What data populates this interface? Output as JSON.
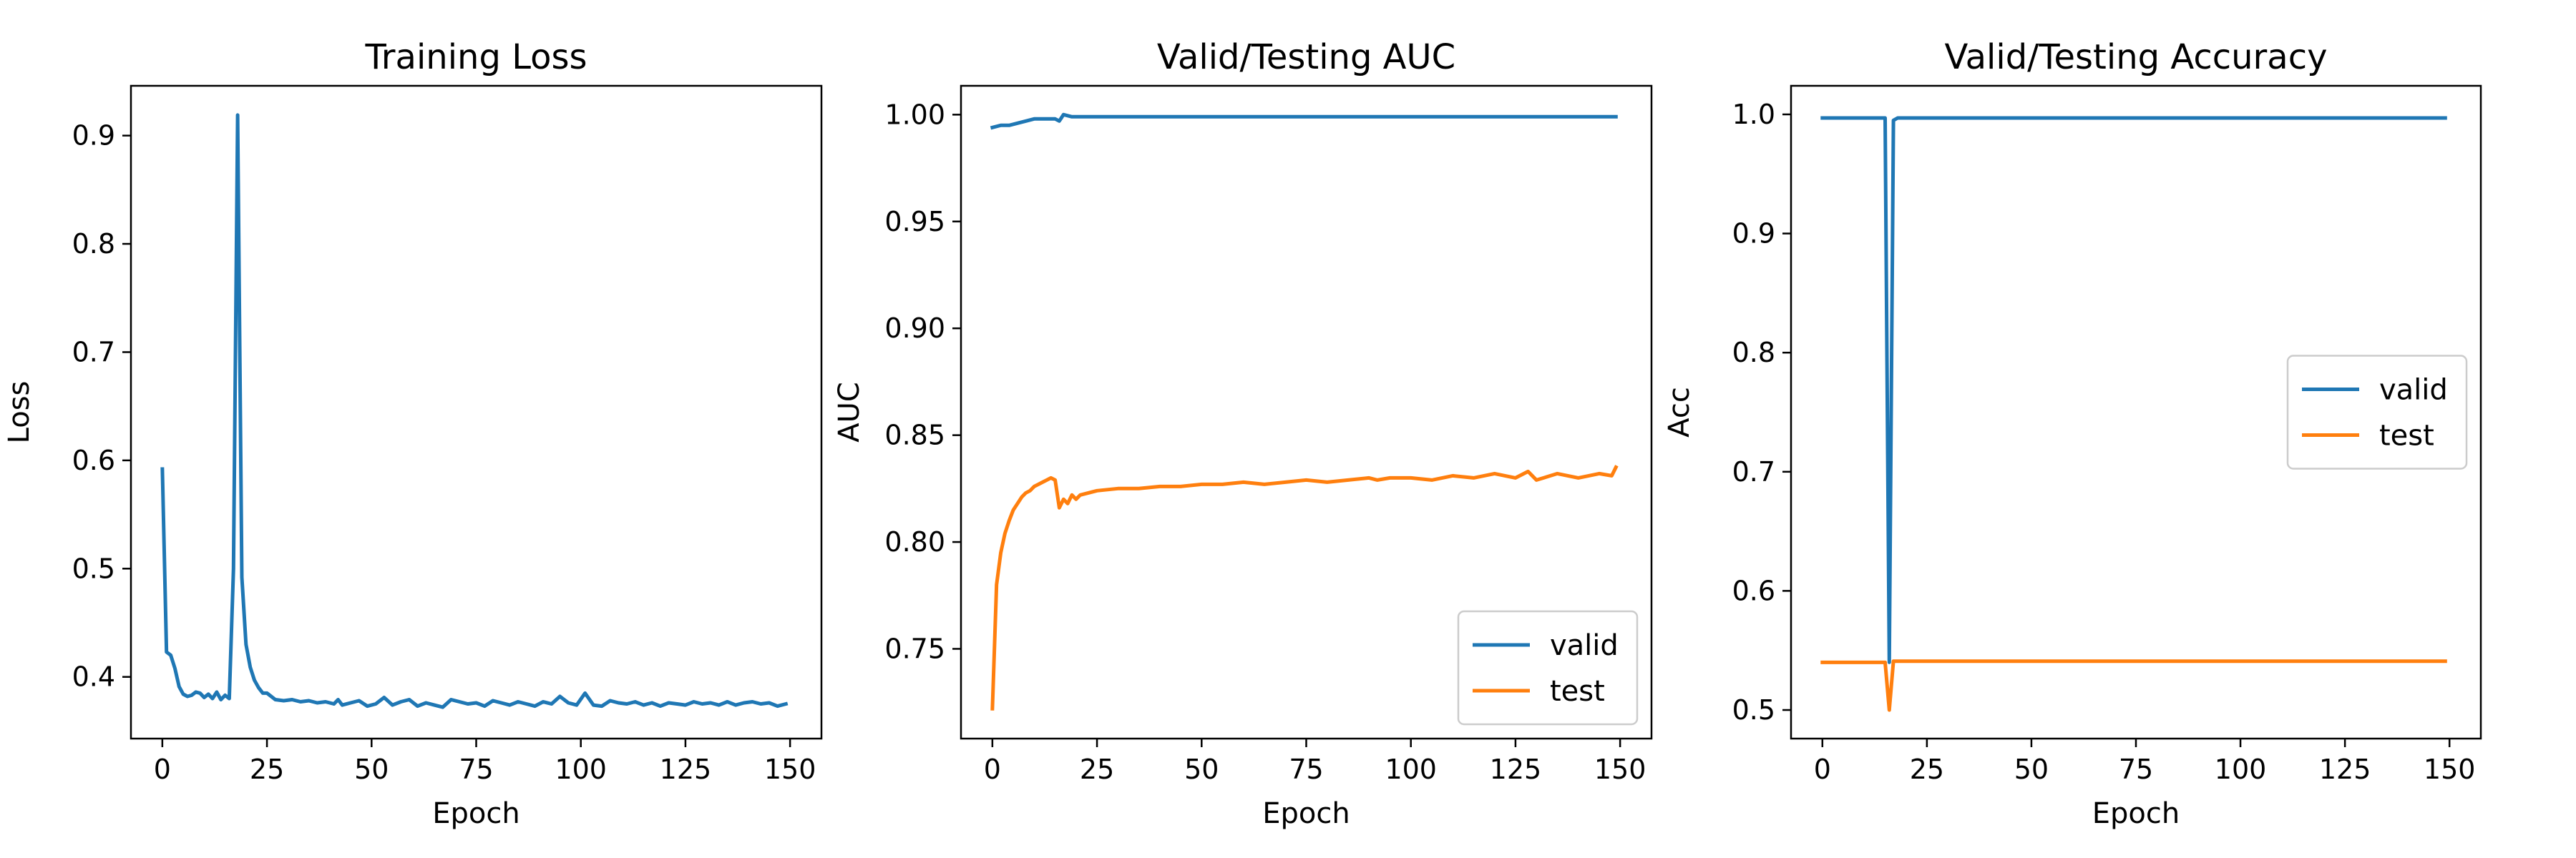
{
  "chart_data": [
    {
      "type": "line",
      "title": "Training Loss",
      "xlabel": "Epoch",
      "ylabel": "Loss",
      "xlim": [
        -7.5,
        157.5
      ],
      "ylim": [
        0.343,
        0.946
      ],
      "xticks": [
        0,
        25,
        50,
        75,
        100,
        125,
        150
      ],
      "yticks": [
        0.4,
        0.5,
        0.6,
        0.7,
        0.8,
        0.9
      ],
      "ytick_labels": [
        "0.4",
        "0.5",
        "0.6",
        "0.7",
        "0.8",
        "0.9"
      ],
      "grid": false,
      "legend": null,
      "series": [
        {
          "color": "#1f77b4",
          "points": [
            [
              0,
              0.592
            ],
            [
              1,
              0.423
            ],
            [
              2,
              0.42
            ],
            [
              3,
              0.408
            ],
            [
              4,
              0.391
            ],
            [
              5,
              0.384
            ],
            [
              6,
              0.382
            ],
            [
              7,
              0.383
            ],
            [
              8,
              0.386
            ],
            [
              9,
              0.385
            ],
            [
              10,
              0.381
            ],
            [
              11,
              0.384
            ],
            [
              12,
              0.38
            ],
            [
              13,
              0.386
            ],
            [
              14,
              0.379
            ],
            [
              15,
              0.383
            ],
            [
              16,
              0.38
            ],
            [
              17,
              0.5
            ],
            [
              18,
              0.919
            ],
            [
              19,
              0.492
            ],
            [
              20,
              0.43
            ],
            [
              21,
              0.409
            ],
            [
              22,
              0.397
            ],
            [
              23,
              0.39
            ],
            [
              24,
              0.385
            ],
            [
              25,
              0.385
            ],
            [
              27,
              0.379
            ],
            [
              29,
              0.378
            ],
            [
              31,
              0.379
            ],
            [
              33,
              0.377
            ],
            [
              35,
              0.378
            ],
            [
              37,
              0.376
            ],
            [
              39,
              0.377
            ],
            [
              41,
              0.375
            ],
            [
              42,
              0.379
            ],
            [
              43,
              0.374
            ],
            [
              45,
              0.376
            ],
            [
              47,
              0.378
            ],
            [
              49,
              0.373
            ],
            [
              51,
              0.375
            ],
            [
              53,
              0.381
            ],
            [
              55,
              0.374
            ],
            [
              57,
              0.377
            ],
            [
              59,
              0.379
            ],
            [
              61,
              0.373
            ],
            [
              63,
              0.376
            ],
            [
              65,
              0.374
            ],
            [
              67,
              0.372
            ],
            [
              69,
              0.379
            ],
            [
              71,
              0.377
            ],
            [
              73,
              0.375
            ],
            [
              75,
              0.376
            ],
            [
              77,
              0.373
            ],
            [
              79,
              0.378
            ],
            [
              81,
              0.376
            ],
            [
              83,
              0.374
            ],
            [
              85,
              0.377
            ],
            [
              87,
              0.375
            ],
            [
              89,
              0.373
            ],
            [
              91,
              0.377
            ],
            [
              93,
              0.375
            ],
            [
              95,
              0.382
            ],
            [
              97,
              0.376
            ],
            [
              99,
              0.374
            ],
            [
              101,
              0.385
            ],
            [
              103,
              0.374
            ],
            [
              105,
              0.373
            ],
            [
              107,
              0.378
            ],
            [
              109,
              0.376
            ],
            [
              111,
              0.375
            ],
            [
              113,
              0.377
            ],
            [
              115,
              0.374
            ],
            [
              117,
              0.376
            ],
            [
              119,
              0.373
            ],
            [
              121,
              0.376
            ],
            [
              123,
              0.375
            ],
            [
              125,
              0.374
            ],
            [
              127,
              0.377
            ],
            [
              129,
              0.375
            ],
            [
              131,
              0.376
            ],
            [
              133,
              0.374
            ],
            [
              135,
              0.377
            ],
            [
              137,
              0.374
            ],
            [
              139,
              0.376
            ],
            [
              141,
              0.377
            ],
            [
              143,
              0.375
            ],
            [
              145,
              0.376
            ],
            [
              147,
              0.373
            ],
            [
              149,
              0.375
            ]
          ]
        }
      ]
    },
    {
      "type": "line",
      "title": "Valid/Testing AUC",
      "xlabel": "Epoch",
      "ylabel": "AUC",
      "xlim": [
        -7.5,
        157.5
      ],
      "ylim": [
        0.708,
        1.0135
      ],
      "xticks": [
        0,
        25,
        50,
        75,
        100,
        125,
        150
      ],
      "yticks": [
        0.75,
        0.8,
        0.85,
        0.9,
        0.95,
        1.0
      ],
      "ytick_labels": [
        "0.75",
        "0.80",
        "0.85",
        "0.90",
        "0.95",
        "1.00"
      ],
      "grid": false,
      "legend": "lower right",
      "series": [
        {
          "name": "valid",
          "color": "#1f77b4",
          "points": [
            [
              0,
              0.994
            ],
            [
              2,
              0.995
            ],
            [
              4,
              0.995
            ],
            [
              6,
              0.996
            ],
            [
              8,
              0.997
            ],
            [
              10,
              0.998
            ],
            [
              12,
              0.998
            ],
            [
              14,
              0.998
            ],
            [
              15,
              0.998
            ],
            [
              16,
              0.997
            ],
            [
              17,
              1.0
            ],
            [
              19,
              0.999
            ],
            [
              25,
              0.999
            ],
            [
              50,
              0.999
            ],
            [
              75,
              0.999
            ],
            [
              100,
              0.999
            ],
            [
              125,
              0.999
            ],
            [
              149,
              0.999
            ]
          ]
        },
        {
          "name": "test",
          "color": "#ff7f0e",
          "points": [
            [
              0,
              0.722
            ],
            [
              1,
              0.78
            ],
            [
              2,
              0.795
            ],
            [
              3,
              0.804
            ],
            [
              4,
              0.81
            ],
            [
              5,
              0.815
            ],
            [
              6,
              0.818
            ],
            [
              7,
              0.821
            ],
            [
              8,
              0.823
            ],
            [
              9,
              0.824
            ],
            [
              10,
              0.826
            ],
            [
              11,
              0.827
            ],
            [
              12,
              0.828
            ],
            [
              13,
              0.829
            ],
            [
              14,
              0.83
            ],
            [
              15,
              0.829
            ],
            [
              16,
              0.816
            ],
            [
              17,
              0.82
            ],
            [
              18,
              0.818
            ],
            [
              19,
              0.822
            ],
            [
              20,
              0.82
            ],
            [
              21,
              0.822
            ],
            [
              23,
              0.823
            ],
            [
              25,
              0.824
            ],
            [
              30,
              0.825
            ],
            [
              35,
              0.825
            ],
            [
              40,
              0.826
            ],
            [
              45,
              0.826
            ],
            [
              50,
              0.827
            ],
            [
              55,
              0.827
            ],
            [
              60,
              0.828
            ],
            [
              65,
              0.827
            ],
            [
              70,
              0.828
            ],
            [
              75,
              0.829
            ],
            [
              80,
              0.828
            ],
            [
              85,
              0.829
            ],
            [
              90,
              0.83
            ],
            [
              92,
              0.829
            ],
            [
              95,
              0.83
            ],
            [
              100,
              0.83
            ],
            [
              105,
              0.829
            ],
            [
              110,
              0.831
            ],
            [
              115,
              0.83
            ],
            [
              120,
              0.832
            ],
            [
              125,
              0.83
            ],
            [
              128,
              0.833
            ],
            [
              130,
              0.829
            ],
            [
              135,
              0.832
            ],
            [
              140,
              0.83
            ],
            [
              145,
              0.832
            ],
            [
              148,
              0.831
            ],
            [
              149,
              0.835
            ]
          ]
        }
      ]
    },
    {
      "type": "line",
      "title": "Valid/Testing Accuracy",
      "xlabel": "Epoch",
      "ylabel": "Acc",
      "xlim": [
        -7.5,
        157.5
      ],
      "ylim": [
        0.476,
        1.024
      ],
      "xticks": [
        0,
        25,
        50,
        75,
        100,
        125,
        150
      ],
      "yticks": [
        0.5,
        0.6,
        0.7,
        0.8,
        0.9,
        1.0
      ],
      "ytick_labels": [
        "0.5",
        "0.6",
        "0.7",
        "0.8",
        "0.9",
        "1.0"
      ],
      "grid": false,
      "legend": "center right",
      "series": [
        {
          "name": "valid",
          "color": "#1f77b4",
          "points": [
            [
              0,
              0.997
            ],
            [
              15,
              0.997
            ],
            [
              16,
              0.54
            ],
            [
              17,
              0.995
            ],
            [
              18,
              0.997
            ],
            [
              149,
              0.997
            ]
          ]
        },
        {
          "name": "test",
          "color": "#ff7f0e",
          "points": [
            [
              0,
              0.54
            ],
            [
              15,
              0.54
            ],
            [
              16,
              0.5
            ],
            [
              17,
              0.541
            ],
            [
              18,
              0.541
            ],
            [
              149,
              0.541
            ]
          ]
        }
      ]
    }
  ]
}
